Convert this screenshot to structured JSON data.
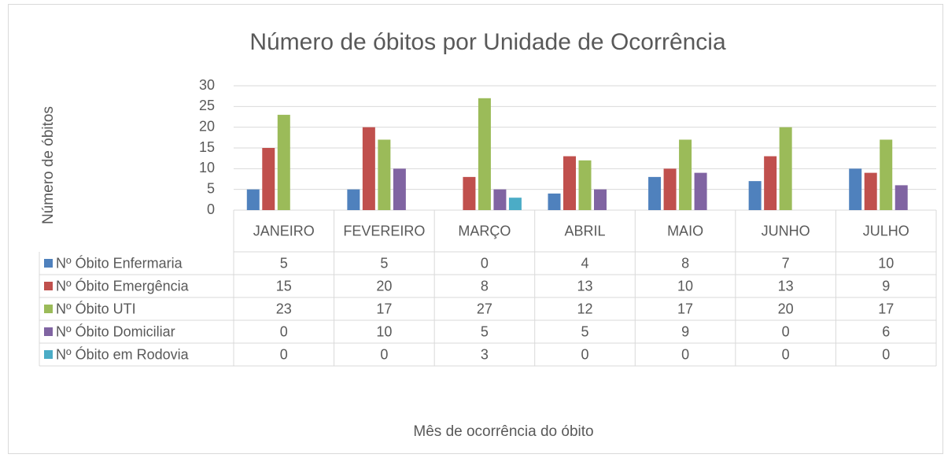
{
  "chart_data": {
    "type": "bar",
    "title": "Número de óbitos por Unidade de Ocorrência",
    "x_label": "Mês de ocorrência do óbito",
    "y_label": "Número de óbitos",
    "categories": [
      "JANEIRO",
      "FEVEREIRO",
      "MARÇO",
      "ABRIL",
      "MAIO",
      "JUNHO",
      "JULHO"
    ],
    "series": [
      {
        "name": "Nº Óbito Enfermaria",
        "color": "#4f81bd",
        "values": [
          5,
          5,
          0,
          4,
          8,
          7,
          10
        ]
      },
      {
        "name": "Nº Óbito Emergência",
        "color": "#c0504d",
        "values": [
          15,
          20,
          8,
          13,
          10,
          13,
          9
        ]
      },
      {
        "name": "Nº Óbito UTI",
        "color": "#9bbb59",
        "values": [
          23,
          17,
          27,
          12,
          17,
          20,
          17
        ]
      },
      {
        "name": "Nº Óbito Domiciliar",
        "color": "#8064a2",
        "values": [
          0,
          10,
          5,
          5,
          9,
          0,
          6
        ]
      },
      {
        "name": "Nº Óbito em Rodovia",
        "color": "#4bacc6",
        "values": [
          0,
          0,
          3,
          0,
          0,
          0,
          0
        ]
      }
    ],
    "ylim": [
      0,
      30
    ],
    "yticks": [
      0,
      5,
      10,
      15,
      20,
      25,
      30
    ],
    "grid": true
  }
}
